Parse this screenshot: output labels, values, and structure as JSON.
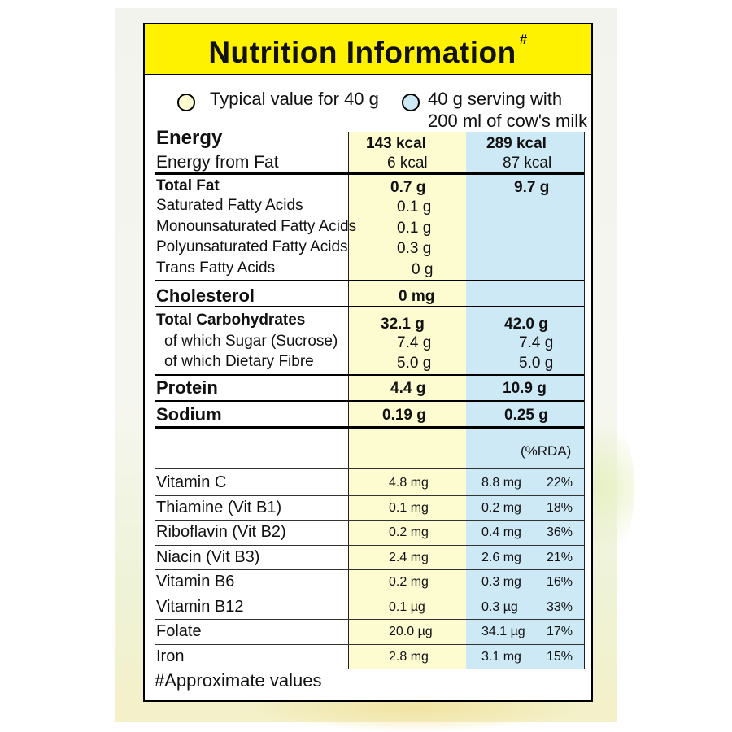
{
  "title": "Nutrition Information",
  "title_mark": "#",
  "legend": {
    "col1_label": "Typical value for 40 g",
    "col2_line1": "40 g serving with",
    "col2_line2": "200 ml of cow's milk"
  },
  "colors": {
    "title_bg": "#fff200",
    "col1_bg": "#fdfbd0",
    "col2_bg": "#cde9f6"
  },
  "energy": {
    "label": "Energy",
    "col1": "143 kcal",
    "col2": "289 kcal",
    "sub_label": "Energy from Fat",
    "sub_col1": "6 kcal",
    "sub_col2": "87 kcal"
  },
  "fat": {
    "label": "Total Fat",
    "col1": "0.7 g",
    "col2": "9.7 g",
    "rows": [
      {
        "label": "Saturated Fatty Acids",
        "col1": "0.1 g"
      },
      {
        "label": "Monounsaturated Fatty Acids",
        "col1": "0.1 g"
      },
      {
        "label": "Polyunsaturated Fatty Acids",
        "col1": "0.3 g"
      },
      {
        "label": "Trans Fatty Acids",
        "col1": "0 g"
      }
    ]
  },
  "cholesterol": {
    "label": "Cholesterol",
    "col1": "0 mg"
  },
  "carbs": {
    "label": "Total Carbohydrates",
    "col1": "32.1 g",
    "col2": "42.0 g",
    "rows": [
      {
        "label": "of which Sugar (Sucrose)",
        "col1": "7.4 g",
        "col2": "7.4 g"
      },
      {
        "label": "of which Dietary Fibre",
        "col1": "5.0 g",
        "col2": "5.0 g"
      }
    ]
  },
  "protein": {
    "label": "Protein",
    "col1": "4.4 g",
    "col2": "10.9 g"
  },
  "sodium": {
    "label": "Sodium",
    "col1": "0.19 g",
    "col2": "0.25 g"
  },
  "rda_header": "(%RDA)",
  "vitamins": [
    {
      "label": "Vitamin C",
      "col1": "4.8 mg",
      "col2": "8.8 mg",
      "rda": "22%"
    },
    {
      "label": "Thiamine (Vit B1)",
      "col1": "0.1 mg",
      "col2": "0.2 mg",
      "rda": "18%"
    },
    {
      "label": "Riboflavin (Vit B2)",
      "col1": "0.2 mg",
      "col2": "0.4 mg",
      "rda": "36%"
    },
    {
      "label": "Niacin (Vit B3)",
      "col1": "2.4 mg",
      "col2": "2.6 mg",
      "rda": "21%"
    },
    {
      "label": "Vitamin B6",
      "col1": "0.2 mg",
      "col2": "0.3 mg",
      "rda": "16%"
    },
    {
      "label": "Vitamin B12",
      "col1": "0.1 µg",
      "col2": "0.3 µg",
      "rda": "33%"
    },
    {
      "label": "Folate",
      "col1": "20.0  µg",
      "col2": "34.1 µg",
      "rda": "17%"
    },
    {
      "label": "Iron",
      "col1": "2.8 mg",
      "col2": "3.1 mg",
      "rda": "15%"
    }
  ],
  "footnote": "#Approximate values"
}
